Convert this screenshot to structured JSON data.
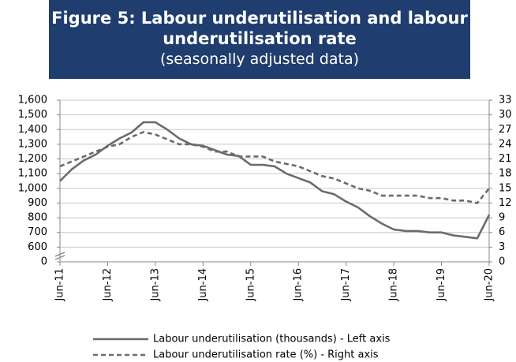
{
  "chart_data": {
    "type": "line",
    "title": "Figure 5: Labour underutilisation and labour underutilisation rate",
    "subtitle": "(seasonally adjusted data)",
    "categories": [
      "Jun-11",
      null,
      null,
      null,
      "Jun-12",
      null,
      null,
      null,
      "Jun-13",
      null,
      null,
      null,
      "Jun-14",
      null,
      null,
      null,
      "Jun-15",
      null,
      null,
      null,
      "Jun-16",
      null,
      null,
      null,
      "Jun-17",
      null,
      null,
      null,
      "Jun-18",
      null,
      null,
      null,
      "Jun-19",
      null,
      null,
      null,
      "Jun-20"
    ],
    "series": [
      {
        "name": "Labour underutilisation (thousands) - Left axis",
        "color": "#6b6b6b",
        "axis": "y",
        "dashed": false,
        "values": [
          1050,
          1130,
          1190,
          1230,
          1290,
          1340,
          1380,
          1450,
          1450,
          1400,
          1340,
          1300,
          1290,
          1260,
          1230,
          1220,
          1160,
          1160,
          1150,
          1100,
          1070,
          1040,
          980,
          960,
          910,
          870,
          810,
          760,
          720,
          710,
          710,
          700,
          700,
          680,
          670,
          660,
          820
        ]
      },
      {
        "name": "Labour underutilisation rate (%) - Right axis",
        "color": "#6b6b6b",
        "axis": "y2",
        "dashed": true,
        "values": [
          19.5,
          20.5,
          21.5,
          22.5,
          23.5,
          24,
          25.5,
          26.5,
          26,
          25,
          24,
          24,
          23.5,
          22.5,
          22.5,
          21.5,
          21.5,
          21.5,
          20.5,
          20,
          19.5,
          18.5,
          17.5,
          17,
          16,
          15,
          14.5,
          13.5,
          13.5,
          13.5,
          13.5,
          13,
          13,
          12.5,
          12.5,
          12,
          15
        ]
      }
    ],
    "ylim": [
      0,
      1600
    ],
    "yticks": [
      0,
      600,
      700,
      800,
      900,
      {
        "value": 1000,
        "label": "1,000"
      },
      {
        "value": 1100,
        "label": "1,100"
      },
      {
        "value": 1200,
        "label": "1,200"
      },
      {
        "value": 1300,
        "label": "1,300"
      },
      {
        "value": 1400,
        "label": "1,400"
      },
      {
        "value": 1500,
        "label": "1,500"
      },
      {
        "value": 1600,
        "label": "1,600"
      }
    ],
    "y_axis_break": true,
    "y2lim": [
      0,
      33
    ],
    "y2ticks": [
      0,
      3,
      6,
      9,
      12,
      15,
      18,
      21,
      24,
      27,
      30,
      33
    ],
    "grid": true
  }
}
